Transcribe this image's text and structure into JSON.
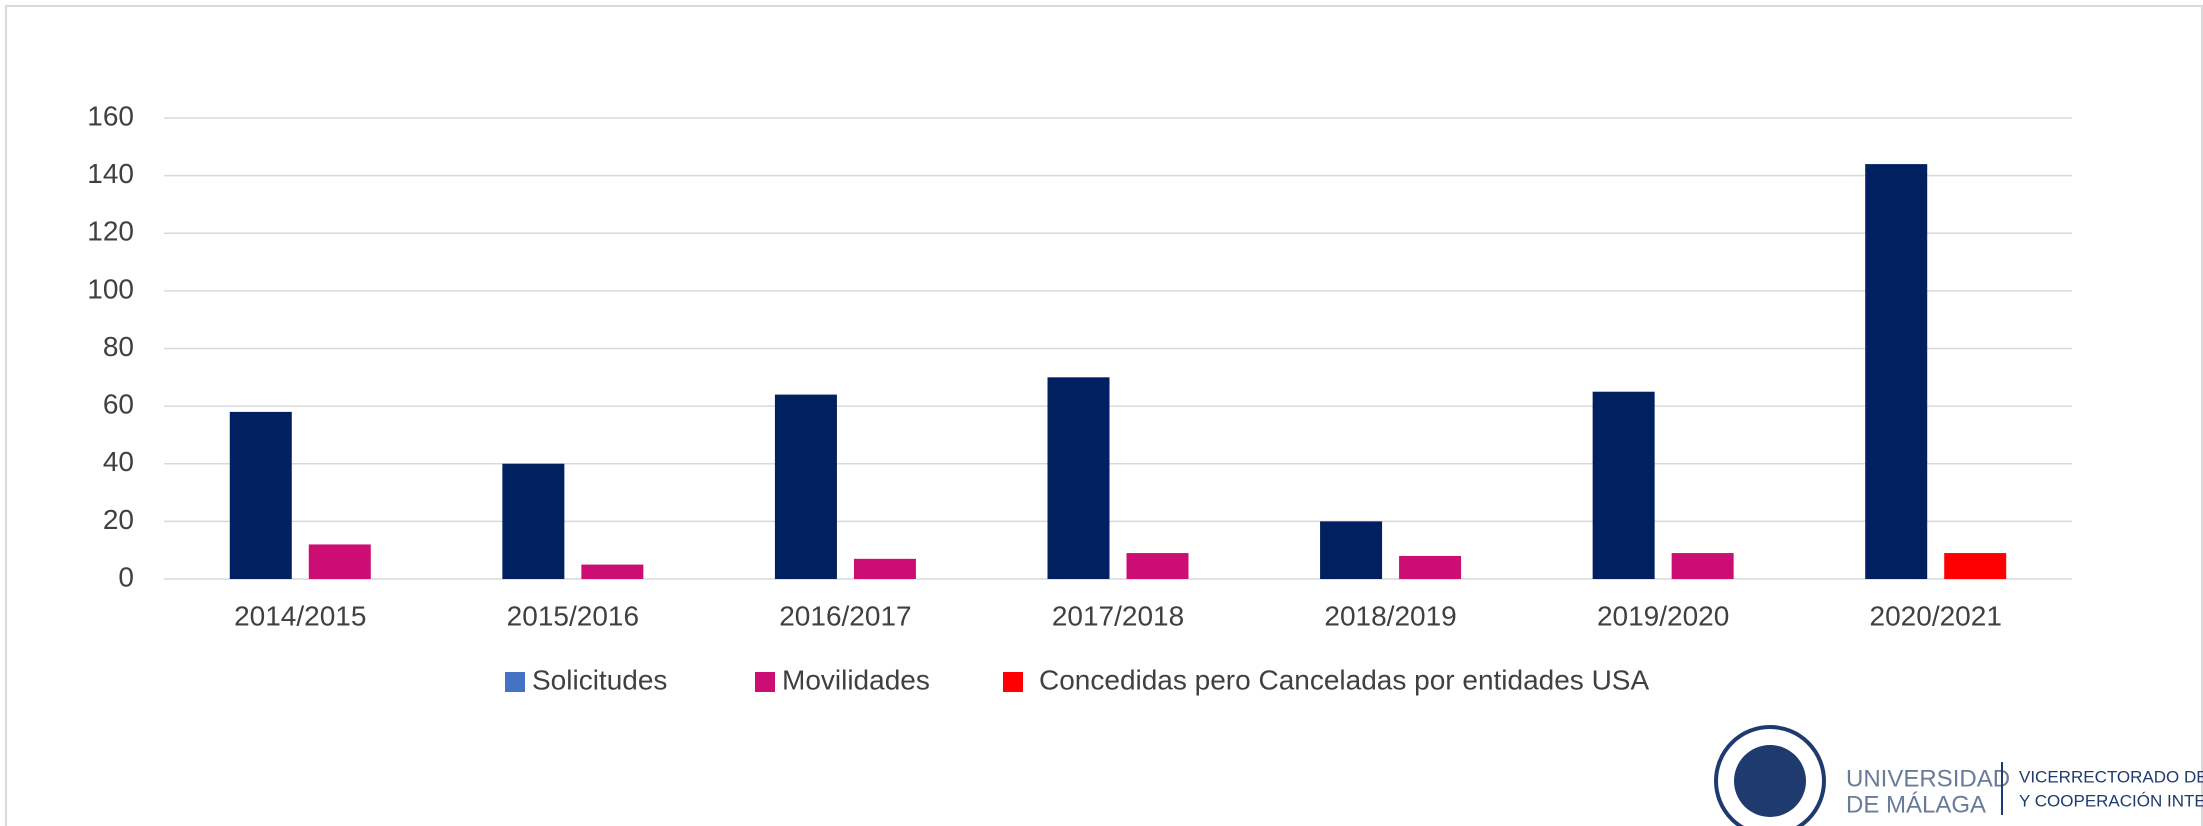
{
  "chart_data": {
    "type": "bar",
    "categories": [
      "2014/2015",
      "2015/2016",
      "2016/2017",
      "2017/2018",
      "2018/2019",
      "2019/2020",
      "2020/2021"
    ],
    "series": [
      {
        "name": "Solicitudes",
        "color": "#002060",
        "legend_color": "#4472c4",
        "values": [
          58,
          40,
          64,
          70,
          20,
          65,
          144
        ]
      },
      {
        "name": "Movilidades",
        "color": "#cc0e74",
        "values": [
          12,
          5,
          7,
          9,
          8,
          9,
          null
        ]
      },
      {
        "name": "Concedidas pero Canceladas por entidades USA",
        "color": "#ff0000",
        "values": [
          null,
          null,
          null,
          null,
          null,
          null,
          9
        ]
      }
    ],
    "ylim": [
      0,
      160
    ],
    "yticks": [
      0,
      20,
      40,
      60,
      80,
      100,
      120,
      140,
      160
    ],
    "grid": true,
    "legend": "bottom"
  },
  "logo": {
    "name1": "UNIVERSIDAD",
    "name2": "DE MÁLAGA",
    "unit1": "VICERRECTORADO DE M",
    "unit2": "Y COOPERACIÓN INTERN"
  }
}
